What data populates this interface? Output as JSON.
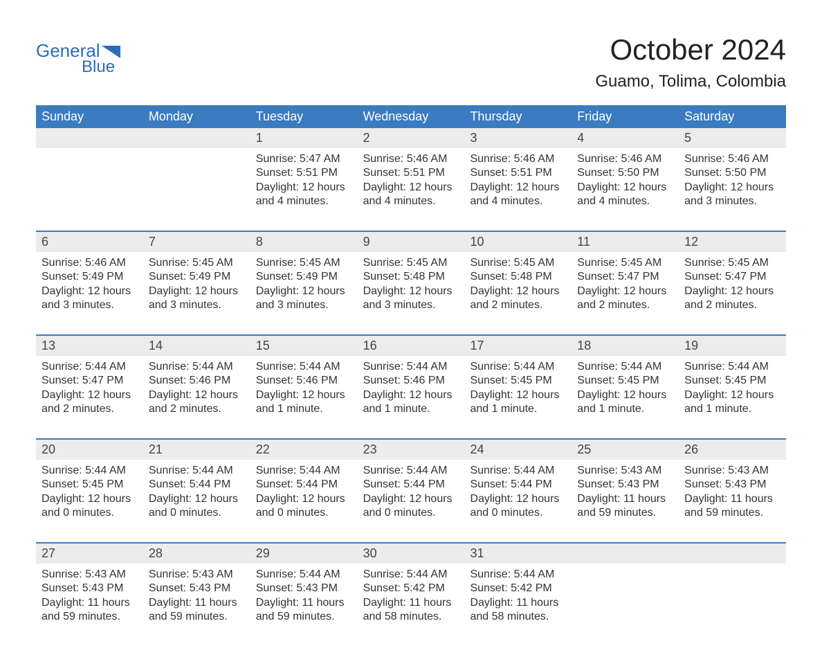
{
  "brand": {
    "word1": "General",
    "word2": "Blue",
    "text_color": "#2a6db8",
    "accent_color": "#2a6db8"
  },
  "title": "October 2024",
  "location": "Guamo, Tolima, Colombia",
  "colors": {
    "header_bg": "#3b7bbf",
    "header_text": "#ffffff",
    "daynum_bg": "#ececec",
    "week_border": "#3b7bbf",
    "body_text": "#333333",
    "page_bg": "#ffffff"
  },
  "day_headers": [
    "Sunday",
    "Monday",
    "Tuesday",
    "Wednesday",
    "Thursday",
    "Friday",
    "Saturday"
  ],
  "weeks": [
    [
      {
        "n": "",
        "sunrise": "",
        "sunset": "",
        "daylight": ""
      },
      {
        "n": "",
        "sunrise": "",
        "sunset": "",
        "daylight": ""
      },
      {
        "n": "1",
        "sunrise": "Sunrise: 5:47 AM",
        "sunset": "Sunset: 5:51 PM",
        "daylight": "Daylight: 12 hours and 4 minutes."
      },
      {
        "n": "2",
        "sunrise": "Sunrise: 5:46 AM",
        "sunset": "Sunset: 5:51 PM",
        "daylight": "Daylight: 12 hours and 4 minutes."
      },
      {
        "n": "3",
        "sunrise": "Sunrise: 5:46 AM",
        "sunset": "Sunset: 5:51 PM",
        "daylight": "Daylight: 12 hours and 4 minutes."
      },
      {
        "n": "4",
        "sunrise": "Sunrise: 5:46 AM",
        "sunset": "Sunset: 5:50 PM",
        "daylight": "Daylight: 12 hours and 4 minutes."
      },
      {
        "n": "5",
        "sunrise": "Sunrise: 5:46 AM",
        "sunset": "Sunset: 5:50 PM",
        "daylight": "Daylight: 12 hours and 3 minutes."
      }
    ],
    [
      {
        "n": "6",
        "sunrise": "Sunrise: 5:46 AM",
        "sunset": "Sunset: 5:49 PM",
        "daylight": "Daylight: 12 hours and 3 minutes."
      },
      {
        "n": "7",
        "sunrise": "Sunrise: 5:45 AM",
        "sunset": "Sunset: 5:49 PM",
        "daylight": "Daylight: 12 hours and 3 minutes."
      },
      {
        "n": "8",
        "sunrise": "Sunrise: 5:45 AM",
        "sunset": "Sunset: 5:49 PM",
        "daylight": "Daylight: 12 hours and 3 minutes."
      },
      {
        "n": "9",
        "sunrise": "Sunrise: 5:45 AM",
        "sunset": "Sunset: 5:48 PM",
        "daylight": "Daylight: 12 hours and 3 minutes."
      },
      {
        "n": "10",
        "sunrise": "Sunrise: 5:45 AM",
        "sunset": "Sunset: 5:48 PM",
        "daylight": "Daylight: 12 hours and 2 minutes."
      },
      {
        "n": "11",
        "sunrise": "Sunrise: 5:45 AM",
        "sunset": "Sunset: 5:47 PM",
        "daylight": "Daylight: 12 hours and 2 minutes."
      },
      {
        "n": "12",
        "sunrise": "Sunrise: 5:45 AM",
        "sunset": "Sunset: 5:47 PM",
        "daylight": "Daylight: 12 hours and 2 minutes."
      }
    ],
    [
      {
        "n": "13",
        "sunrise": "Sunrise: 5:44 AM",
        "sunset": "Sunset: 5:47 PM",
        "daylight": "Daylight: 12 hours and 2 minutes."
      },
      {
        "n": "14",
        "sunrise": "Sunrise: 5:44 AM",
        "sunset": "Sunset: 5:46 PM",
        "daylight": "Daylight: 12 hours and 2 minutes."
      },
      {
        "n": "15",
        "sunrise": "Sunrise: 5:44 AM",
        "sunset": "Sunset: 5:46 PM",
        "daylight": "Daylight: 12 hours and 1 minute."
      },
      {
        "n": "16",
        "sunrise": "Sunrise: 5:44 AM",
        "sunset": "Sunset: 5:46 PM",
        "daylight": "Daylight: 12 hours and 1 minute."
      },
      {
        "n": "17",
        "sunrise": "Sunrise: 5:44 AM",
        "sunset": "Sunset: 5:45 PM",
        "daylight": "Daylight: 12 hours and 1 minute."
      },
      {
        "n": "18",
        "sunrise": "Sunrise: 5:44 AM",
        "sunset": "Sunset: 5:45 PM",
        "daylight": "Daylight: 12 hours and 1 minute."
      },
      {
        "n": "19",
        "sunrise": "Sunrise: 5:44 AM",
        "sunset": "Sunset: 5:45 PM",
        "daylight": "Daylight: 12 hours and 1 minute."
      }
    ],
    [
      {
        "n": "20",
        "sunrise": "Sunrise: 5:44 AM",
        "sunset": "Sunset: 5:45 PM",
        "daylight": "Daylight: 12 hours and 0 minutes."
      },
      {
        "n": "21",
        "sunrise": "Sunrise: 5:44 AM",
        "sunset": "Sunset: 5:44 PM",
        "daylight": "Daylight: 12 hours and 0 minutes."
      },
      {
        "n": "22",
        "sunrise": "Sunrise: 5:44 AM",
        "sunset": "Sunset: 5:44 PM",
        "daylight": "Daylight: 12 hours and 0 minutes."
      },
      {
        "n": "23",
        "sunrise": "Sunrise: 5:44 AM",
        "sunset": "Sunset: 5:44 PM",
        "daylight": "Daylight: 12 hours and 0 minutes."
      },
      {
        "n": "24",
        "sunrise": "Sunrise: 5:44 AM",
        "sunset": "Sunset: 5:44 PM",
        "daylight": "Daylight: 12 hours and 0 minutes."
      },
      {
        "n": "25",
        "sunrise": "Sunrise: 5:43 AM",
        "sunset": "Sunset: 5:43 PM",
        "daylight": "Daylight: 11 hours and 59 minutes."
      },
      {
        "n": "26",
        "sunrise": "Sunrise: 5:43 AM",
        "sunset": "Sunset: 5:43 PM",
        "daylight": "Daylight: 11 hours and 59 minutes."
      }
    ],
    [
      {
        "n": "27",
        "sunrise": "Sunrise: 5:43 AM",
        "sunset": "Sunset: 5:43 PM",
        "daylight": "Daylight: 11 hours and 59 minutes."
      },
      {
        "n": "28",
        "sunrise": "Sunrise: 5:43 AM",
        "sunset": "Sunset: 5:43 PM",
        "daylight": "Daylight: 11 hours and 59 minutes."
      },
      {
        "n": "29",
        "sunrise": "Sunrise: 5:44 AM",
        "sunset": "Sunset: 5:43 PM",
        "daylight": "Daylight: 11 hours and 59 minutes."
      },
      {
        "n": "30",
        "sunrise": "Sunrise: 5:44 AM",
        "sunset": "Sunset: 5:42 PM",
        "daylight": "Daylight: 11 hours and 58 minutes."
      },
      {
        "n": "31",
        "sunrise": "Sunrise: 5:44 AM",
        "sunset": "Sunset: 5:42 PM",
        "daylight": "Daylight: 11 hours and 58 minutes."
      },
      {
        "n": "",
        "sunrise": "",
        "sunset": "",
        "daylight": ""
      },
      {
        "n": "",
        "sunrise": "",
        "sunset": "",
        "daylight": ""
      }
    ]
  ]
}
